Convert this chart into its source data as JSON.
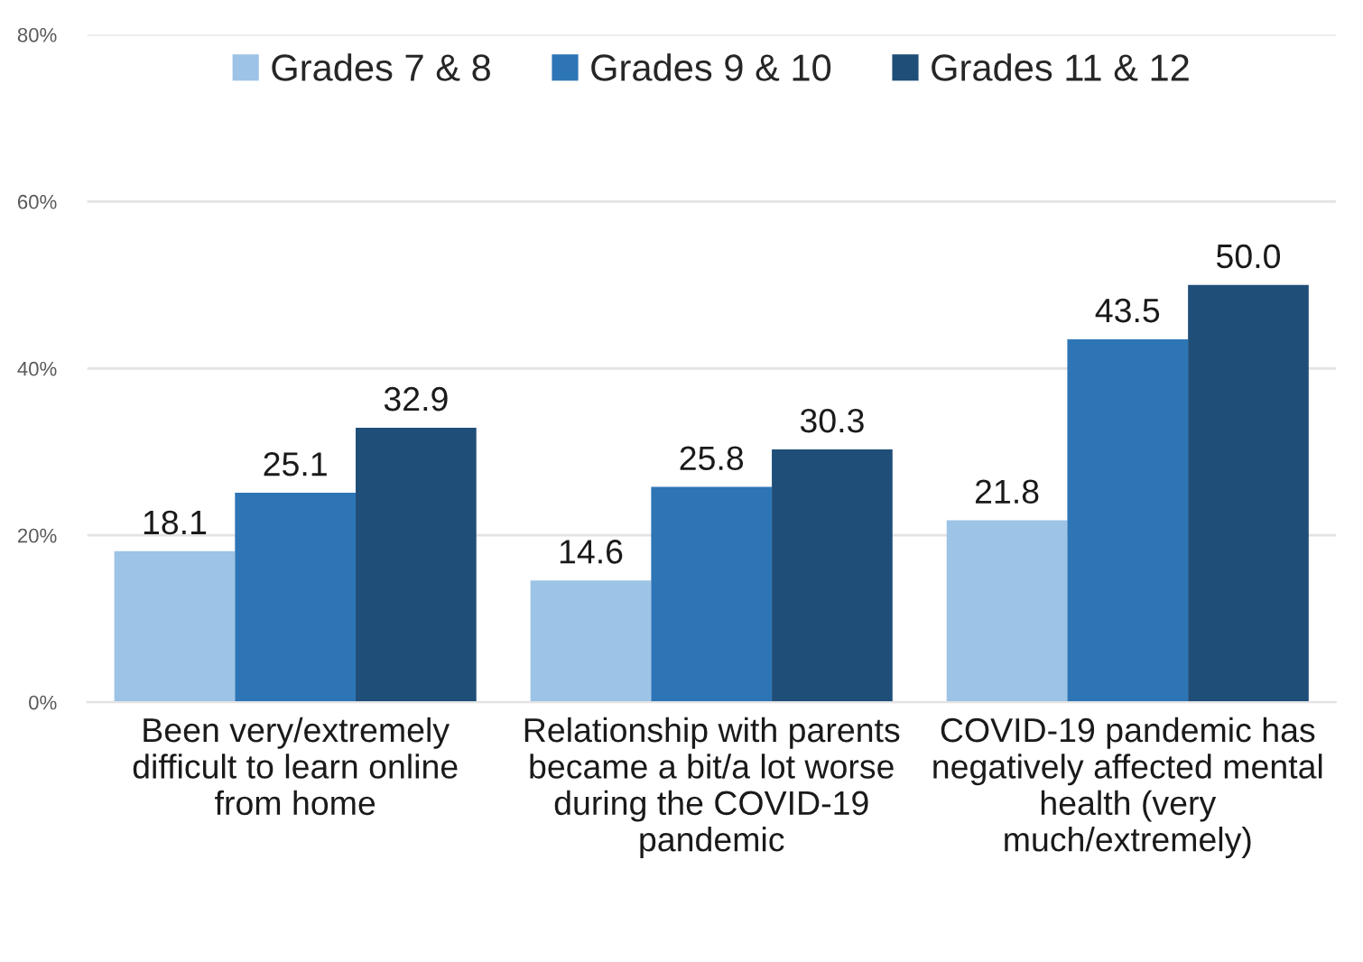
{
  "chart_data": {
    "type": "bar",
    "categories": [
      "Been very/extremely\ndifficult to learn online\nfrom home",
      "Relationship with parents\nbecame a bit/a lot worse\nduring the COVID-19\npandemic",
      "COVID-19 pandemic has\nnegatively affected mental\nhealth (very\nmuch/extremely)"
    ],
    "series": [
      {
        "name": "Grades 7 & 8",
        "color": "#9dc3e6",
        "values": [
          18.1,
          14.6,
          21.8
        ],
        "value_labels": [
          "18.1",
          "14.6",
          "21.8"
        ]
      },
      {
        "name": "Grades 9 & 10",
        "color": "#2e75b6",
        "values": [
          25.1,
          25.8,
          43.5
        ],
        "value_labels": [
          "25.1",
          "25.8",
          "43.5"
        ]
      },
      {
        "name": "Grades 11 & 12",
        "color": "#1f4e79",
        "values": [
          32.9,
          30.3,
          50.0
        ],
        "value_labels": [
          "32.9",
          "30.3",
          "50.0"
        ]
      }
    ],
    "ylim": [
      0,
      80
    ],
    "yticks": [
      {
        "value": 0,
        "label": "0%"
      },
      {
        "value": 20,
        "label": "20%"
      },
      {
        "value": 40,
        "label": "40%"
      },
      {
        "value": 60,
        "label": "60%"
      },
      {
        "value": 80,
        "label": "80%"
      }
    ],
    "grid": "y",
    "legend": "top"
  }
}
